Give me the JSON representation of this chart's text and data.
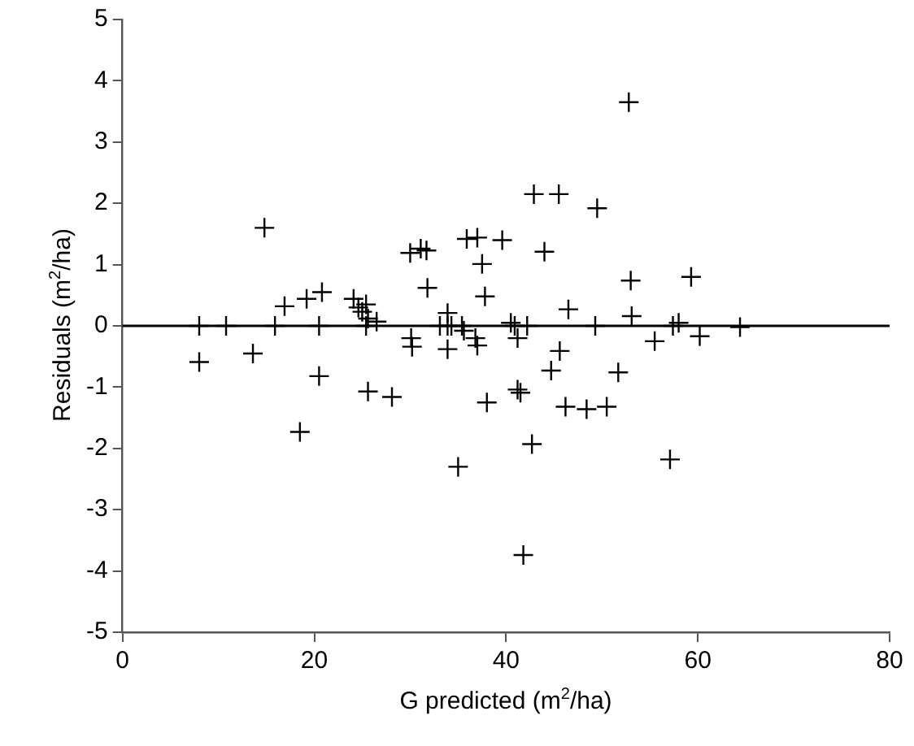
{
  "chart_data": {
    "type": "scatter",
    "xlabel": "G predicted (m$^{2}$/ha)",
    "ylabel": "Residuals (m$^{2}$/ha)",
    "marker": "cross",
    "grid": false,
    "legend": false,
    "xlim": [
      0,
      80
    ],
    "xticks": [
      0,
      20,
      40,
      60,
      80
    ],
    "ylim": [
      -5,
      5
    ],
    "yticks": [
      -5,
      -4,
      -3,
      -2,
      -1,
      0,
      1,
      2,
      3,
      4,
      5
    ],
    "ref_lines": [
      {
        "axis": "y",
        "value": 0,
        "color": "#000000"
      }
    ],
    "series": [
      {
        "color": "#000000",
        "x": [
          8.0,
          8.0,
          10.8,
          13.6,
          14.8,
          15.9,
          16.9,
          18.5,
          19.2,
          20.5,
          20.5,
          20.8,
          24.1,
          24.6,
          25.0,
          25.4,
          25.6,
          25.4,
          25.6,
          26.5,
          28.1,
          30.0,
          30.1,
          30.2,
          31.1,
          31.7,
          31.8,
          33.1,
          33.9,
          34.3,
          33.9,
          33.9,
          35.0,
          35.4,
          35.6,
          35.9,
          37.0,
          36.8,
          37.0,
          37.5,
          37.8,
          38.0,
          39.6,
          40.5,
          40.9,
          42.2,
          41.2,
          41.2,
          41.5,
          41.8,
          42.7,
          42.9,
          45.5,
          44.0,
          44.7,
          45.6,
          46.2,
          46.5,
          48.4,
          49.3,
          49.5,
          50.5,
          51.7,
          52.8,
          53.0,
          53.1,
          55.5,
          57.4,
          58.0,
          57.1,
          59.3,
          60.2,
          64.4
        ],
        "values": [
          0,
          -0.59,
          0,
          -0.45,
          1.6,
          0,
          0.32,
          -1.73,
          0.44,
          0,
          -0.82,
          0.55,
          0.44,
          0.3,
          0.23,
          0.35,
          0.12,
          0,
          -1.07,
          0.07,
          -1.16,
          1.19,
          -0.2,
          -0.34,
          1.26,
          1.23,
          0.62,
          0,
          0,
          0,
          0.21,
          -0.38,
          -2.3,
          0,
          -0.08,
          1.42,
          1.44,
          -0.2,
          -0.32,
          1.01,
          0.48,
          -1.25,
          1.4,
          0.05,
          0,
          0,
          -0.2,
          -1.04,
          -1.09,
          -3.74,
          -1.93,
          2.15,
          2.15,
          1.21,
          -0.73,
          -0.41,
          -1.32,
          0.27,
          -1.36,
          0,
          1.92,
          -1.32,
          -0.76,
          3.65,
          0.74,
          0.16,
          -0.25,
          0,
          0.05,
          -2.18,
          0.8,
          -0.17,
          -0.02
        ]
      }
    ]
  }
}
